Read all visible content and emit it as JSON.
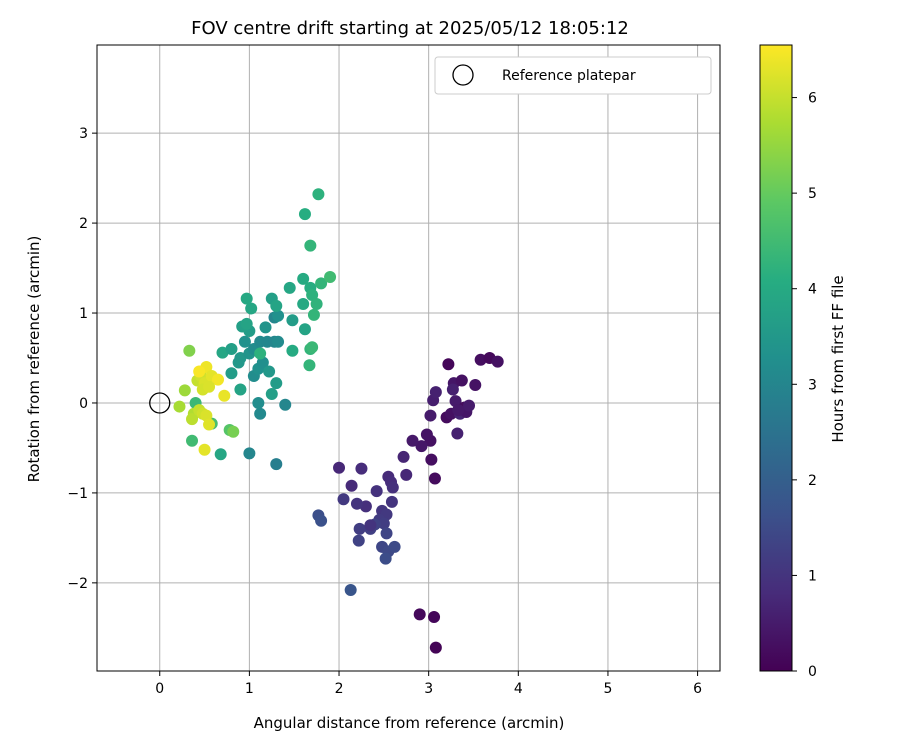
{
  "chart_data": {
    "type": "scatter",
    "title": "FOV centre drift starting at 2025/05/12 18:05:12",
    "xlabel": "Angular distance from reference (arcmin)",
    "ylabel": "Rotation from reference (arcmin)",
    "xlim": [
      -0.7,
      6.25
    ],
    "ylim": [
      -2.98,
      3.98
    ],
    "xticks": [
      0,
      1,
      2,
      3,
      4,
      5,
      6
    ],
    "yticks": [
      -2,
      -1,
      0,
      1,
      2,
      3
    ],
    "xtick_labels": [
      "0",
      "1",
      "2",
      "3",
      "4",
      "5",
      "6"
    ],
    "ytick_labels": [
      "−2",
      "−1",
      "0",
      "1",
      "2",
      "3"
    ],
    "grid": true,
    "legend": {
      "position": "top-right",
      "entries": [
        {
          "label": "Reference platepar",
          "marker": "open-circle"
        }
      ]
    },
    "reference_point": {
      "x": 0,
      "y": 0
    },
    "colorbar": {
      "label": "Hours from first FF file",
      "colormap": "viridis",
      "range": [
        0,
        6.55
      ],
      "ticks": [
        0,
        1,
        2,
        3,
        4,
        5,
        6
      ],
      "tick_labels": [
        "0",
        "1",
        "2",
        "3",
        "4",
        "5",
        "6"
      ]
    },
    "points": [
      {
        "x": 3.08,
        "y": -2.72,
        "c": 0.05
      },
      {
        "x": 3.06,
        "y": -2.38,
        "c": 0.1
      },
      {
        "x": 2.9,
        "y": -2.35,
        "c": 0.15
      },
      {
        "x": 3.07,
        "y": -0.84,
        "c": 0.2
      },
      {
        "x": 3.03,
        "y": -0.63,
        "c": 0.25
      },
      {
        "x": 3.02,
        "y": -0.42,
        "c": 0.3
      },
      {
        "x": 2.98,
        "y": -0.35,
        "c": 0.35
      },
      {
        "x": 2.92,
        "y": -0.48,
        "c": 0.4
      },
      {
        "x": 2.82,
        "y": -0.42,
        "c": 0.45
      },
      {
        "x": 3.02,
        "y": -0.14,
        "c": 0.5
      },
      {
        "x": 3.05,
        "y": 0.03,
        "c": 0.55
      },
      {
        "x": 3.08,
        "y": 0.12,
        "c": 0.6
      },
      {
        "x": 3.22,
        "y": 0.43,
        "c": 0.1
      },
      {
        "x": 3.2,
        "y": -0.16,
        "c": 0.2
      },
      {
        "x": 3.25,
        "y": -0.12,
        "c": 0.3
      },
      {
        "x": 3.28,
        "y": 0.22,
        "c": 0.4
      },
      {
        "x": 3.3,
        "y": 0.02,
        "c": 0.5
      },
      {
        "x": 3.32,
        "y": -0.34,
        "c": 0.6
      },
      {
        "x": 3.35,
        "y": -0.12,
        "c": 0.7
      },
      {
        "x": 3.37,
        "y": 0.25,
        "c": 0.3
      },
      {
        "x": 3.4,
        "y": -0.05,
        "c": 0.2
      },
      {
        "x": 3.42,
        "y": -0.1,
        "c": 0.4
      },
      {
        "x": 3.45,
        "y": -0.03,
        "c": 0.5
      },
      {
        "x": 3.52,
        "y": 0.2,
        "c": 0.35
      },
      {
        "x": 3.58,
        "y": 0.48,
        "c": 0.25
      },
      {
        "x": 3.68,
        "y": 0.5,
        "c": 0.15
      },
      {
        "x": 3.77,
        "y": 0.46,
        "c": 0.3
      },
      {
        "x": 3.27,
        "y": 0.15,
        "c": 0.6
      },
      {
        "x": 3.33,
        "y": -0.08,
        "c": 0.45
      },
      {
        "x": 2.72,
        "y": -0.6,
        "c": 0.7
      },
      {
        "x": 2.75,
        "y": -0.8,
        "c": 0.75
      },
      {
        "x": 2.55,
        "y": -0.82,
        "c": 0.8
      },
      {
        "x": 2.58,
        "y": -0.88,
        "c": 0.85
      },
      {
        "x": 2.6,
        "y": -0.94,
        "c": 0.9
      },
      {
        "x": 2.42,
        "y": -0.98,
        "c": 0.95
      },
      {
        "x": 2.59,
        "y": -1.1,
        "c": 1.0
      },
      {
        "x": 2.48,
        "y": -1.2,
        "c": 1.05
      },
      {
        "x": 2.53,
        "y": -1.24,
        "c": 1.1
      },
      {
        "x": 2.45,
        "y": -1.3,
        "c": 1.15
      },
      {
        "x": 2.5,
        "y": -1.34,
        "c": 1.2
      },
      {
        "x": 2.35,
        "y": -1.4,
        "c": 1.25
      },
      {
        "x": 2.4,
        "y": -1.35,
        "c": 1.3
      },
      {
        "x": 2.53,
        "y": -1.45,
        "c": 1.35
      },
      {
        "x": 2.48,
        "y": -1.6,
        "c": 1.4
      },
      {
        "x": 2.55,
        "y": -1.65,
        "c": 1.45
      },
      {
        "x": 2.62,
        "y": -1.6,
        "c": 1.5
      },
      {
        "x": 2.52,
        "y": -1.73,
        "c": 1.55
      },
      {
        "x": 2.3,
        "y": -1.15,
        "c": 0.9
      },
      {
        "x": 2.2,
        "y": -1.12,
        "c": 1.0
      },
      {
        "x": 2.14,
        "y": -0.92,
        "c": 0.8
      },
      {
        "x": 2.0,
        "y": -0.72,
        "c": 0.75
      },
      {
        "x": 2.25,
        "y": -0.73,
        "c": 0.85
      },
      {
        "x": 2.05,
        "y": -1.07,
        "c": 1.1
      },
      {
        "x": 2.23,
        "y": -1.4,
        "c": 1.2
      },
      {
        "x": 2.22,
        "y": -1.53,
        "c": 1.3
      },
      {
        "x": 2.35,
        "y": -1.36,
        "c": 1.0
      },
      {
        "x": 1.77,
        "y": -1.25,
        "c": 1.6
      },
      {
        "x": 1.8,
        "y": -1.31,
        "c": 1.65
      },
      {
        "x": 2.13,
        "y": -2.08,
        "c": 1.75
      },
      {
        "x": 1.3,
        "y": -0.68,
        "c": 2.8
      },
      {
        "x": 1.0,
        "y": -0.56,
        "c": 3.0
      },
      {
        "x": 0.68,
        "y": -0.57,
        "c": 3.9
      },
      {
        "x": 1.4,
        "y": -0.02,
        "c": 3.0
      },
      {
        "x": 1.12,
        "y": -0.12,
        "c": 3.1
      },
      {
        "x": 1.1,
        "y": 0.0,
        "c": 3.2
      },
      {
        "x": 1.05,
        "y": 0.3,
        "c": 3.2
      },
      {
        "x": 1.1,
        "y": 0.38,
        "c": 3.3
      },
      {
        "x": 1.15,
        "y": 0.45,
        "c": 3.25
      },
      {
        "x": 1.22,
        "y": 0.35,
        "c": 3.5
      },
      {
        "x": 1.3,
        "y": 0.22,
        "c": 3.6
      },
      {
        "x": 1.25,
        "y": 0.1,
        "c": 3.7
      },
      {
        "x": 0.9,
        "y": 0.15,
        "c": 3.8
      },
      {
        "x": 0.8,
        "y": 0.33,
        "c": 3.6
      },
      {
        "x": 0.9,
        "y": 0.5,
        "c": 3.5
      },
      {
        "x": 1.0,
        "y": 0.55,
        "c": 3.4
      },
      {
        "x": 0.95,
        "y": 0.68,
        "c": 3.3
      },
      {
        "x": 1.05,
        "y": 0.6,
        "c": 3.2
      },
      {
        "x": 1.12,
        "y": 0.68,
        "c": 3.1
      },
      {
        "x": 1.2,
        "y": 0.68,
        "c": 3.05
      },
      {
        "x": 1.28,
        "y": 0.68,
        "c": 3.0
      },
      {
        "x": 1.32,
        "y": 0.68,
        "c": 3.15
      },
      {
        "x": 1.18,
        "y": 0.84,
        "c": 3.4
      },
      {
        "x": 1.28,
        "y": 0.95,
        "c": 3.0
      },
      {
        "x": 1.32,
        "y": 0.97,
        "c": 3.3
      },
      {
        "x": 1.0,
        "y": 0.8,
        "c": 3.6
      },
      {
        "x": 0.92,
        "y": 0.85,
        "c": 3.7
      },
      {
        "x": 0.97,
        "y": 0.88,
        "c": 3.8
      },
      {
        "x": 0.7,
        "y": 0.56,
        "c": 3.9
      },
      {
        "x": 0.8,
        "y": 0.6,
        "c": 3.7
      },
      {
        "x": 0.88,
        "y": 0.45,
        "c": 3.5
      },
      {
        "x": 1.12,
        "y": 0.55,
        "c": 4.2
      },
      {
        "x": 1.02,
        "y": 1.05,
        "c": 3.9
      },
      {
        "x": 0.97,
        "y": 1.16,
        "c": 3.95
      },
      {
        "x": 1.25,
        "y": 1.16,
        "c": 3.7
      },
      {
        "x": 1.3,
        "y": 1.08,
        "c": 3.85
      },
      {
        "x": 1.45,
        "y": 1.28,
        "c": 3.9
      },
      {
        "x": 1.48,
        "y": 0.92,
        "c": 3.6
      },
      {
        "x": 1.48,
        "y": 0.58,
        "c": 4.0
      },
      {
        "x": 1.6,
        "y": 1.1,
        "c": 3.95
      },
      {
        "x": 1.62,
        "y": 0.82,
        "c": 3.8
      },
      {
        "x": 1.6,
        "y": 1.38,
        "c": 4.0
      },
      {
        "x": 1.68,
        "y": 1.28,
        "c": 4.1
      },
      {
        "x": 1.7,
        "y": 1.2,
        "c": 4.2
      },
      {
        "x": 1.75,
        "y": 1.1,
        "c": 4.25
      },
      {
        "x": 1.72,
        "y": 0.98,
        "c": 4.3
      },
      {
        "x": 1.68,
        "y": 0.6,
        "c": 4.3
      },
      {
        "x": 1.7,
        "y": 0.62,
        "c": 4.4
      },
      {
        "x": 1.67,
        "y": 0.42,
        "c": 4.3
      },
      {
        "x": 1.8,
        "y": 1.33,
        "c": 4.3
      },
      {
        "x": 1.9,
        "y": 1.4,
        "c": 4.5
      },
      {
        "x": 1.62,
        "y": 2.1,
        "c": 4.1
      },
      {
        "x": 1.77,
        "y": 2.32,
        "c": 4.2
      },
      {
        "x": 1.68,
        "y": 1.75,
        "c": 4.3
      },
      {
        "x": 0.36,
        "y": -0.42,
        "c": 4.5
      },
      {
        "x": 0.4,
        "y": 0.0,
        "c": 4.4
      },
      {
        "x": 0.58,
        "y": -0.23,
        "c": 4.6
      },
      {
        "x": 0.33,
        "y": 0.58,
        "c": 5.3
      },
      {
        "x": 0.78,
        "y": -0.3,
        "c": 4.8
      },
      {
        "x": 0.82,
        "y": -0.32,
        "c": 5.2
      },
      {
        "x": 0.28,
        "y": 0.14,
        "c": 5.6
      },
      {
        "x": 0.22,
        "y": -0.04,
        "c": 5.7
      },
      {
        "x": 0.38,
        "y": -0.12,
        "c": 5.8
      },
      {
        "x": 0.36,
        "y": -0.18,
        "c": 5.9
      },
      {
        "x": 0.44,
        "y": -0.08,
        "c": 6.0
      },
      {
        "x": 0.48,
        "y": -0.12,
        "c": 6.1
      },
      {
        "x": 0.52,
        "y": -0.14,
        "c": 6.2
      },
      {
        "x": 0.55,
        "y": -0.24,
        "c": 6.25
      },
      {
        "x": 0.5,
        "y": -0.52,
        "c": 6.3
      },
      {
        "x": 0.42,
        "y": 0.25,
        "c": 6.0
      },
      {
        "x": 0.46,
        "y": 0.3,
        "c": 6.1
      },
      {
        "x": 0.5,
        "y": 0.22,
        "c": 6.2
      },
      {
        "x": 0.48,
        "y": 0.15,
        "c": 6.15
      },
      {
        "x": 0.52,
        "y": 0.4,
        "c": 6.4
      },
      {
        "x": 0.44,
        "y": 0.35,
        "c": 6.5
      },
      {
        "x": 0.58,
        "y": 0.3,
        "c": 6.3
      },
      {
        "x": 0.65,
        "y": 0.26,
        "c": 6.45
      },
      {
        "x": 0.72,
        "y": 0.08,
        "c": 6.35
      },
      {
        "x": 0.55,
        "y": 0.18,
        "c": 6.2
      }
    ]
  }
}
